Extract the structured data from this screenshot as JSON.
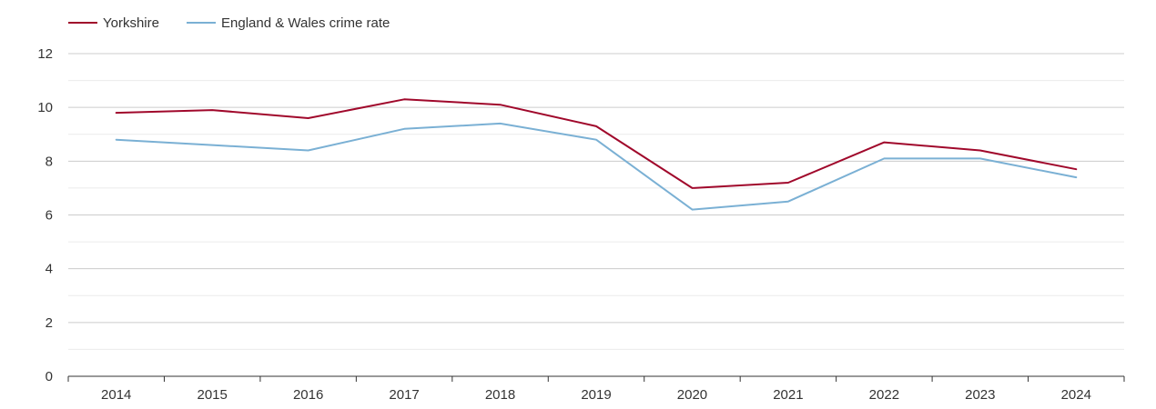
{
  "chart_data": {
    "type": "line",
    "title": "",
    "xlabel": "",
    "ylabel": "",
    "ylim": [
      0,
      12
    ],
    "yticks": [
      0,
      2,
      4,
      6,
      8,
      10,
      12
    ],
    "categories": [
      "2014",
      "2015",
      "2016",
      "2017",
      "2018",
      "2019",
      "2020",
      "2021",
      "2022",
      "2023",
      "2024"
    ],
    "legend_position": "top-left",
    "series": [
      {
        "name": "Yorkshire",
        "color": "#a0082b",
        "values": [
          9.8,
          9.9,
          9.6,
          10.3,
          10.1,
          9.3,
          7.0,
          7.2,
          8.7,
          8.4,
          7.7
        ]
      },
      {
        "name": "England & Wales crime rate",
        "color": "#7ab0d4",
        "values": [
          8.8,
          8.6,
          8.4,
          9.2,
          9.4,
          8.8,
          6.2,
          6.5,
          8.1,
          8.1,
          7.4
        ]
      }
    ]
  }
}
